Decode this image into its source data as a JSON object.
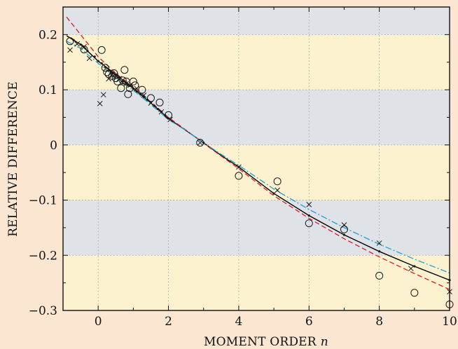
{
  "chart_data": {
    "type": "scatter",
    "title": "",
    "xlabel": "MOMENT ORDER",
    "xlabel_var": "n",
    "ylabel": "RELATIVE DIFFERENCE",
    "xlim": [
      -1,
      10
    ],
    "ylim": [
      -0.3,
      0.25
    ],
    "x_ticks": [
      0,
      2,
      4,
      6,
      8,
      10
    ],
    "x_tick_labels": [
      "0",
      "2",
      "4",
      "6",
      "8",
      "10"
    ],
    "y_ticks": [
      -0.3,
      -0.2,
      -0.1,
      0,
      0.1,
      0.2
    ],
    "y_tick_labels": [
      "−0.3",
      "−0.2",
      "−0.1",
      "0",
      "0.1",
      "0.2"
    ],
    "grid": true,
    "background_bands": [
      {
        "from": 0.2,
        "to": 0.25,
        "color": "#dfe3e8"
      },
      {
        "from": 0.1,
        "to": 0.2,
        "color": "#fcf2cf"
      },
      {
        "from": 0.0,
        "to": 0.1,
        "color": "#dfe3e8"
      },
      {
        "from": -0.1,
        "to": 0.0,
        "color": "#fcf2cf"
      },
      {
        "from": -0.2,
        "to": -0.1,
        "color": "#dfe3e8"
      },
      {
        "from": -0.3,
        "to": -0.2,
        "color": "#fcf2cf"
      }
    ],
    "colors": {
      "background": "#fbe6d2",
      "solid": "#000000",
      "dashed": "#d81c24",
      "dashdot": "#1aa3d6",
      "markers": "#1a1a1a"
    },
    "series": [
      {
        "style": "solid",
        "type": "line",
        "x": [
          -0.9,
          -0.5,
          0,
          0.5,
          1,
          1.5,
          2,
          2.5,
          3,
          3.5,
          4,
          5,
          6,
          7,
          8,
          9,
          10
        ],
        "y": [
          0.198,
          0.182,
          0.152,
          0.128,
          0.102,
          0.076,
          0.048,
          0.026,
          0.004,
          -0.019,
          -0.04,
          -0.088,
          -0.128,
          -0.163,
          -0.193,
          -0.22,
          -0.245
        ]
      },
      {
        "style": "dashed",
        "type": "line",
        "x": [
          -0.9,
          -0.5,
          0,
          0.5,
          1,
          1.5,
          2,
          2.5,
          3,
          3.5,
          4,
          5,
          6,
          7,
          8,
          9,
          10
        ],
        "y": [
          0.232,
          0.2,
          0.16,
          0.13,
          0.104,
          0.078,
          0.05,
          0.027,
          0.003,
          -0.02,
          -0.043,
          -0.092,
          -0.133,
          -0.17,
          -0.203,
          -0.233,
          -0.262
        ]
      },
      {
        "style": "dash-dot",
        "type": "line",
        "x": [
          -0.9,
          -0.5,
          0,
          0.5,
          1,
          1.5,
          2,
          2.5,
          3,
          3.5,
          4,
          5,
          6,
          7,
          8,
          9,
          10
        ],
        "y": [
          0.188,
          0.175,
          0.148,
          0.122,
          0.099,
          0.073,
          0.046,
          0.026,
          0.004,
          -0.017,
          -0.037,
          -0.08,
          -0.117,
          -0.15,
          -0.18,
          -0.207,
          -0.232
        ]
      },
      {
        "marker": "circle",
        "type": "scatter",
        "x": [
          -0.8,
          -0.4,
          0.1,
          0.2,
          0.25,
          0.3,
          0.4,
          0.45,
          0.5,
          0.55,
          0.65,
          0.7,
          0.75,
          0.8,
          0.85,
          0.9,
          1.0,
          1.05,
          1.25,
          1.5,
          1.75,
          2.0,
          2.9,
          4.0,
          5.1,
          6.0,
          7.0,
          8.0,
          9.0,
          10.0
        ],
        "y": [
          0.188,
          0.173,
          0.172,
          0.14,
          0.132,
          0.128,
          0.125,
          0.13,
          0.121,
          0.115,
          0.103,
          0.117,
          0.136,
          0.115,
          0.092,
          0.103,
          0.115,
          0.108,
          0.1,
          0.085,
          0.077,
          0.054,
          0.004,
          -0.056,
          -0.066,
          -0.142,
          -0.153,
          -0.237,
          -0.268,
          -0.289
        ]
      },
      {
        "marker": "cross",
        "type": "scatter",
        "x": [
          -0.8,
          -0.6,
          -0.4,
          -0.25,
          0.05,
          0.15,
          0.3,
          0.4,
          0.5,
          0.6,
          0.7,
          0.8,
          0.9,
          1.1,
          1.3,
          1.5,
          1.8,
          2.05,
          2.9,
          4.0,
          5.1,
          6.0,
          7.0,
          8.0,
          8.9,
          10.0
        ],
        "y": [
          0.172,
          0.183,
          0.178,
          0.157,
          0.075,
          0.091,
          0.12,
          0.128,
          0.125,
          0.12,
          0.113,
          0.111,
          0.108,
          0.102,
          0.09,
          0.076,
          0.06,
          0.046,
          0.004,
          -0.04,
          -0.082,
          -0.108,
          -0.145,
          -0.178,
          -0.224,
          -0.266
        ]
      },
      {
        "marker": "dot",
        "type": "scatter",
        "x": [
          -0.7,
          -0.5,
          -0.3,
          -0.1,
          0.0,
          0.1,
          0.2,
          0.3,
          0.4,
          0.5,
          0.6,
          0.7,
          0.8,
          0.9,
          1.0,
          1.1,
          1.2,
          1.3,
          1.4,
          1.5,
          1.6,
          1.7,
          1.8,
          1.9,
          2.0,
          3.0,
          4.0,
          5.0,
          6.0,
          7.0,
          8.0,
          9.0,
          10.0
        ],
        "y": [
          0.19,
          0.182,
          0.17,
          0.16,
          0.152,
          0.148,
          0.141,
          0.135,
          0.13,
          0.128,
          0.122,
          0.116,
          0.112,
          0.107,
          0.102,
          0.097,
          0.092,
          0.087,
          0.082,
          0.077,
          0.071,
          0.065,
          0.06,
          0.054,
          0.048,
          0.004,
          -0.04,
          -0.088,
          -0.128,
          -0.163,
          -0.193,
          -0.22,
          -0.245
        ]
      }
    ]
  }
}
